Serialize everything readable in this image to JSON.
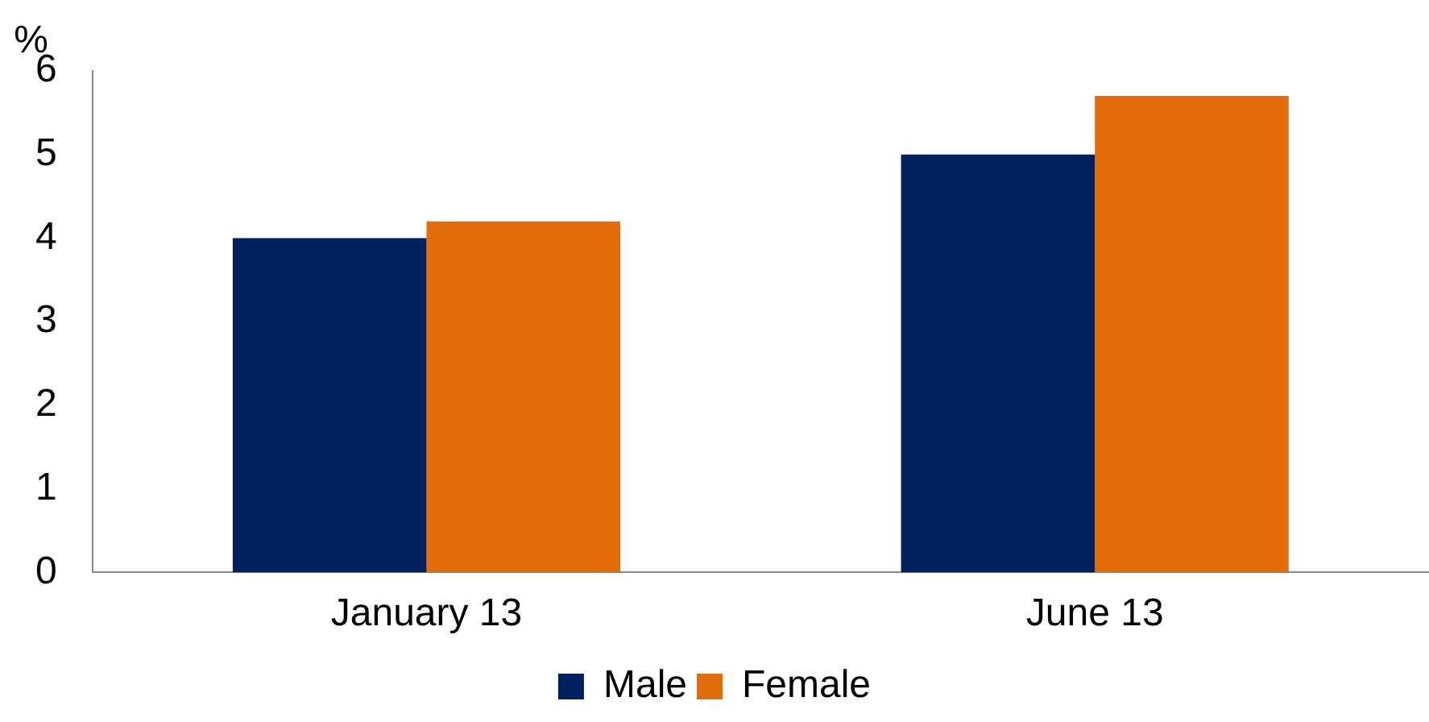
{
  "chart_data": {
    "type": "bar",
    "ylabel": "%",
    "categories": [
      "January 13",
      "June 13"
    ],
    "series": [
      {
        "name": "Male",
        "color": "#002060",
        "values": [
          4.0,
          5.0
        ]
      },
      {
        "name": "Female",
        "color": "#e36c0a",
        "values": [
          4.2,
          5.7
        ]
      }
    ],
    "ylim": [
      0,
      6
    ],
    "yticks": [
      0,
      1,
      2,
      3,
      4,
      5,
      6
    ],
    "grid": false,
    "legend": "bottom"
  }
}
